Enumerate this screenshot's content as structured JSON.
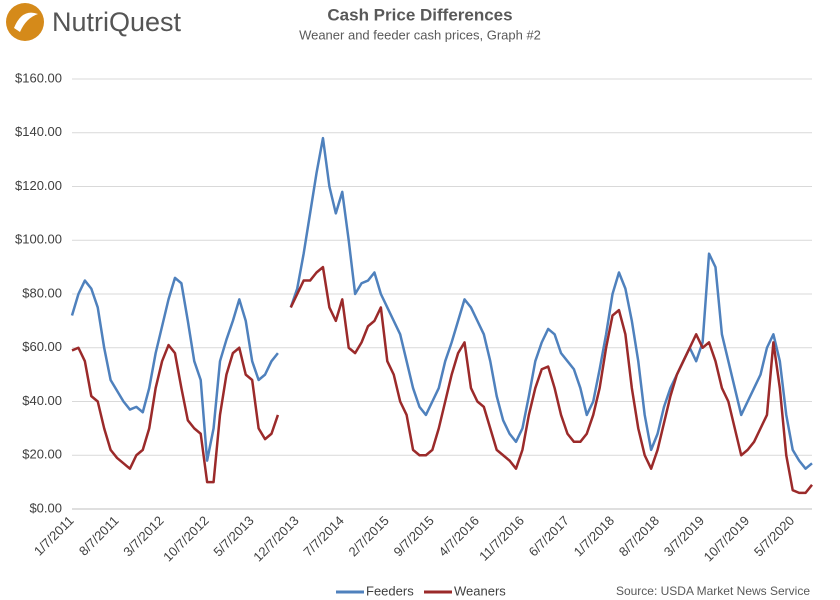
{
  "logo": "NutriQuest",
  "chart_data": {
    "type": "line",
    "title": "Cash Price Differences",
    "subtitle": "Weaner and feeder cash prices, Graph #2",
    "source": "Source: USDA Market News Service",
    "categories": [
      "1/7/2011",
      null,
      null,
      null,
      null,
      null,
      null,
      "8/7/2011",
      null,
      null,
      null,
      null,
      null,
      null,
      "3/7/2012",
      null,
      null,
      null,
      null,
      null,
      null,
      "10/7/2012",
      null,
      null,
      null,
      null,
      null,
      null,
      "5/7/2013",
      null,
      null,
      null,
      null,
      null,
      null,
      "12/7/2013",
      null,
      null,
      null,
      null,
      null,
      null,
      "7/7/2014",
      null,
      null,
      null,
      null,
      null,
      null,
      "2/7/2015",
      null,
      null,
      null,
      null,
      null,
      null,
      "9/7/2015",
      null,
      null,
      null,
      null,
      null,
      null,
      "4/7/2016",
      null,
      null,
      null,
      null,
      null,
      null,
      "11/7/2016",
      null,
      null,
      null,
      null,
      null,
      null,
      "6/7/2017",
      null,
      null,
      null,
      null,
      null,
      null,
      "1/7/2018",
      null,
      null,
      null,
      null,
      null,
      null,
      "8/7/2018",
      null,
      null,
      null,
      null,
      null,
      null,
      "3/7/2019",
      null,
      null,
      null,
      null,
      null,
      null,
      "10/7/2019",
      null,
      null,
      null,
      null,
      null,
      null,
      "5/7/2020",
      null,
      null,
      null
    ],
    "series": [
      {
        "name": "Feeders",
        "color": "#4f81bd",
        "values": [
          72,
          80,
          85,
          82,
          75,
          60,
          48,
          44,
          40,
          37,
          38,
          36,
          45,
          58,
          68,
          78,
          86,
          84,
          70,
          55,
          48,
          18,
          30,
          55,
          63,
          70,
          78,
          70,
          55,
          48,
          50,
          55,
          58,
          null,
          75,
          82,
          95,
          110,
          125,
          138,
          120,
          110,
          118,
          100,
          80,
          84,
          85,
          88,
          80,
          75,
          70,
          65,
          55,
          45,
          38,
          35,
          40,
          45,
          55,
          62,
          70,
          78,
          75,
          70,
          65,
          55,
          42,
          33,
          28,
          25,
          30,
          42,
          55,
          62,
          67,
          65,
          58,
          55,
          52,
          45,
          35,
          40,
          52,
          65,
          80,
          88,
          82,
          70,
          55,
          35,
          22,
          28,
          38,
          45,
          50,
          55,
          60,
          55,
          62,
          95,
          90,
          65,
          55,
          45,
          35,
          40,
          45,
          50,
          60,
          65,
          55,
          35,
          22,
          18,
          15,
          17
        ]
      },
      {
        "name": "Weaners",
        "color": "#9b2a2a",
        "values": [
          59,
          60,
          55,
          42,
          40,
          30,
          22,
          19,
          17,
          15,
          20,
          22,
          30,
          45,
          55,
          61,
          58,
          45,
          33,
          30,
          28,
          10,
          10,
          35,
          50,
          58,
          60,
          50,
          48,
          30,
          26,
          28,
          35,
          null,
          75,
          80,
          85,
          85,
          88,
          90,
          75,
          70,
          78,
          60,
          58,
          62,
          68,
          70,
          75,
          55,
          50,
          40,
          35,
          22,
          20,
          20,
          22,
          30,
          40,
          50,
          58,
          62,
          45,
          40,
          38,
          30,
          22,
          20,
          18,
          15,
          22,
          35,
          45,
          52,
          53,
          45,
          35,
          28,
          25,
          25,
          28,
          35,
          45,
          60,
          72,
          74,
          65,
          45,
          30,
          20,
          15,
          22,
          32,
          42,
          50,
          55,
          60,
          65,
          60,
          62,
          55,
          45,
          40,
          30,
          20,
          22,
          25,
          30,
          35,
          62,
          45,
          20,
          7,
          6,
          6,
          9
        ]
      }
    ],
    "ylim": [
      0,
      160
    ],
    "yticks": [
      {
        "value": 0,
        "label": "$0.00"
      },
      {
        "value": 20,
        "label": "$20.00"
      },
      {
        "value": 40,
        "label": "$40.00"
      },
      {
        "value": 60,
        "label": "$60.00"
      },
      {
        "value": 80,
        "label": "$80.00"
      },
      {
        "value": 100,
        "label": "$100.00"
      },
      {
        "value": 120,
        "label": "$120.00"
      },
      {
        "value": 140,
        "label": "$140.00"
      },
      {
        "value": 160,
        "label": "$160.00"
      }
    ],
    "grid": true,
    "legend": "bottom"
  }
}
